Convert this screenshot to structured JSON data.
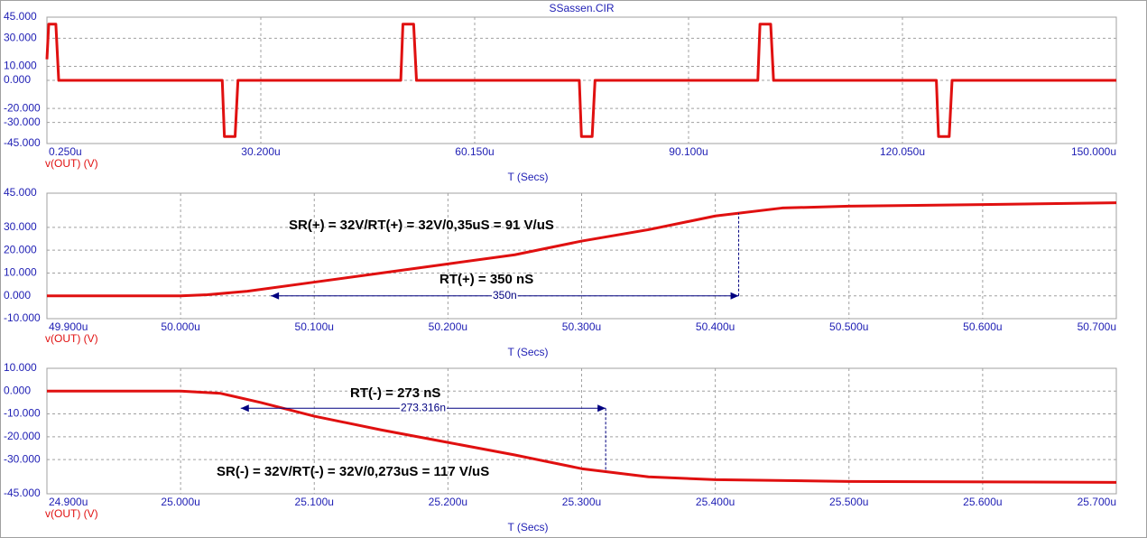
{
  "chart_data": [
    {
      "type": "line",
      "title": "SSassen.CIR",
      "x_label": "T (Secs)",
      "xlim": [
        0.25,
        150
      ],
      "xticks": [
        {
          "value": 0.25,
          "label": "0.250u"
        },
        {
          "value": 30.2,
          "label": "30.200u"
        },
        {
          "value": 60.15,
          "label": "60.150u"
        },
        {
          "value": 90.1,
          "label": "90.100u"
        },
        {
          "value": 120.05,
          "label": "120.050u"
        },
        {
          "value": 150,
          "label": "150.000u"
        }
      ],
      "ylim": [
        -45,
        45
      ],
      "yticks": [
        {
          "value": 45,
          "label": "45.000"
        },
        {
          "value": 30,
          "label": "30.000"
        },
        {
          "value": 10,
          "label": "10.000"
        },
        {
          "value": 0,
          "label": "0.000"
        },
        {
          "value": -20,
          "label": "-20.000"
        },
        {
          "value": -30,
          "label": "-30.000"
        },
        {
          "value": -45,
          "label": "-45.000"
        }
      ],
      "grid": true,
      "x": [
        0.25,
        0.5,
        1.5,
        1.9,
        24.8,
        25.1,
        26.6,
        27.0,
        49.8,
        50.1,
        51.6,
        52.0,
        74.8,
        75.1,
        76.6,
        77.0,
        99.8,
        100.1,
        101.6,
        102.0,
        124.8,
        125.1,
        126.6,
        127.0,
        150
      ],
      "series": [
        {
          "name": "v(OUT) (V)",
          "color": "#e01010",
          "values": [
            15,
            40,
            40,
            0,
            0,
            -40,
            -40,
            0,
            0,
            40,
            40,
            0,
            0,
            -40,
            -40,
            0,
            0,
            40,
            40,
            0,
            0,
            -40,
            -40,
            0,
            0
          ]
        }
      ]
    },
    {
      "type": "line",
      "x_label": "T (Secs)",
      "xlim": [
        49.9,
        50.7
      ],
      "xticks": [
        {
          "value": 49.9,
          "label": "49.900u"
        },
        {
          "value": 50.0,
          "label": "50.000u"
        },
        {
          "value": 50.1,
          "label": "50.100u"
        },
        {
          "value": 50.2,
          "label": "50.200u"
        },
        {
          "value": 50.3,
          "label": "50.300u"
        },
        {
          "value": 50.4,
          "label": "50.400u"
        },
        {
          "value": 50.5,
          "label": "50.500u"
        },
        {
          "value": 50.6,
          "label": "50.600u"
        },
        {
          "value": 50.7,
          "label": "50.700u"
        }
      ],
      "ylim": [
        -10,
        45
      ],
      "yticks": [
        {
          "value": 45,
          "label": "45.000"
        },
        {
          "value": 30,
          "label": "30.000"
        },
        {
          "value": 20,
          "label": "20.000"
        },
        {
          "value": 10,
          "label": "10.000"
        },
        {
          "value": 0,
          "label": "0.000"
        },
        {
          "value": -10,
          "label": "-10.000"
        }
      ],
      "grid": true,
      "x": [
        49.9,
        50.0,
        50.02,
        50.05,
        50.1,
        50.15,
        50.2,
        50.25,
        50.3,
        50.35,
        50.4,
        50.45,
        50.5,
        50.6,
        50.7
      ],
      "series": [
        {
          "name": "v(OUT) (V)",
          "color": "#e01010",
          "values": [
            0,
            0,
            0.5,
            2,
            6,
            10,
            14,
            18,
            24,
            29,
            35,
            38.5,
            39.3,
            40,
            40.8
          ]
        }
      ],
      "cursor": {
        "x": [
          50.0675,
          50.4175
        ],
        "y": 0,
        "label": "350n"
      },
      "annotations": [
        "SR(+) = 32V/RT(+) = 32V/0,35uS = 91 V/uS",
        "RT(+) = 350 nS"
      ]
    },
    {
      "type": "line",
      "x_label": "T (Secs)",
      "xlim": [
        24.9,
        25.7
      ],
      "xticks": [
        {
          "value": 24.9,
          "label": "24.900u"
        },
        {
          "value": 25.0,
          "label": "25.000u"
        },
        {
          "value": 25.1,
          "label": "25.100u"
        },
        {
          "value": 25.2,
          "label": "25.200u"
        },
        {
          "value": 25.3,
          "label": "25.300u"
        },
        {
          "value": 25.4,
          "label": "25.400u"
        },
        {
          "value": 25.5,
          "label": "25.500u"
        },
        {
          "value": 25.6,
          "label": "25.600u"
        },
        {
          "value": 25.7,
          "label": "25.700u"
        }
      ],
      "ylim": [
        -45,
        10
      ],
      "yticks": [
        {
          "value": 10,
          "label": "10.000"
        },
        {
          "value": 0,
          "label": "0.000"
        },
        {
          "value": -10,
          "label": "-10.000"
        },
        {
          "value": -20,
          "label": "-20.000"
        },
        {
          "value": -30,
          "label": "-30.000"
        },
        {
          "value": -45,
          "label": "-45.000"
        }
      ],
      "grid": true,
      "x": [
        24.9,
        25.0,
        25.03,
        25.06,
        25.1,
        25.15,
        25.2,
        25.25,
        25.3,
        25.35,
        25.4,
        25.5,
        25.7
      ],
      "series": [
        {
          "name": "v(OUT) (V)",
          "color": "#e01010",
          "values": [
            0,
            0,
            -1,
            -5,
            -11,
            -17,
            -22.5,
            -28,
            -34,
            -37.6,
            -38.8,
            -39.6,
            -40
          ]
        }
      ],
      "cursor": {
        "x": [
          25.045,
          25.318
        ],
        "y": -7.5,
        "label": "273.316n"
      },
      "annotations": [
        "RT(-) = 273 nS",
        "SR(-) = 32V/RT(-) = 32V/0,273uS = 117 V/uS"
      ]
    }
  ]
}
